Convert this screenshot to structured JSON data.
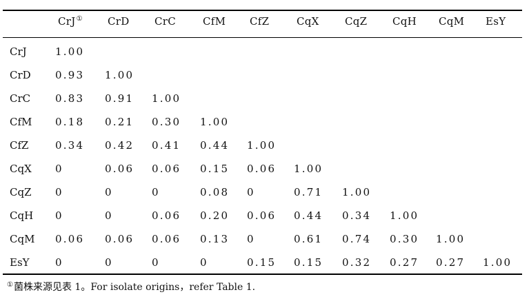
{
  "table": {
    "columns": [
      "CrJ",
      "CrD",
      "CrC",
      "CfM",
      "CfZ",
      "CqX",
      "CqZ",
      "CqH",
      "CqM",
      "EsY"
    ],
    "first_column_marker": "①",
    "rows": [
      {
        "label": "CrJ",
        "values": [
          "1.00"
        ]
      },
      {
        "label": "CrD",
        "values": [
          "0.93",
          "1.00"
        ]
      },
      {
        "label": "CrC",
        "values": [
          "0.83",
          "0.91",
          "1.00"
        ]
      },
      {
        "label": "CfM",
        "values": [
          "0.18",
          "0.21",
          "0.30",
          "1.00"
        ]
      },
      {
        "label": "CfZ",
        "values": [
          "0.34",
          "0.42",
          "0.41",
          "0.44",
          "1.00"
        ]
      },
      {
        "label": "CqX",
        "values": [
          "0",
          "0.06",
          "0.06",
          "0.15",
          "0.06",
          "1.00"
        ]
      },
      {
        "label": "CqZ",
        "values": [
          "0",
          "0",
          "0",
          "0.08",
          "0",
          "0.71",
          "1.00"
        ]
      },
      {
        "label": "CqH",
        "values": [
          "0",
          "0",
          "0.06",
          "0.20",
          "0.06",
          "0.44",
          "0.34",
          "1.00"
        ]
      },
      {
        "label": "CqM",
        "values": [
          "0.06",
          "0.06",
          "0.06",
          "0.13",
          "0",
          "0.61",
          "0.74",
          "0.30",
          "1.00"
        ]
      },
      {
        "label": "EsY",
        "values": [
          "0",
          "0",
          "0",
          "0",
          "0.15",
          "0.15",
          "0.32",
          "0.27",
          "0.27",
          "1.00"
        ]
      }
    ]
  },
  "footnote": {
    "marker": "①",
    "text": "菌株来源见表 1。For isolate origins，refer Table 1."
  }
}
